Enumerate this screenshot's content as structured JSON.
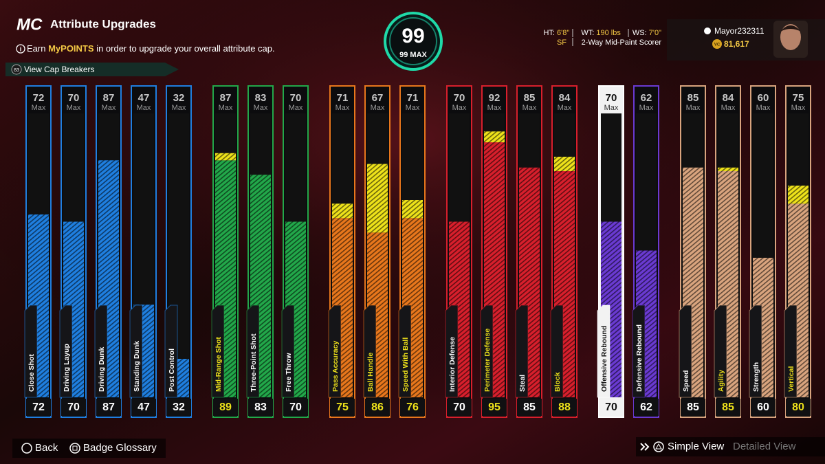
{
  "header": {
    "logo": "MC",
    "title": "Attribute Upgrades",
    "info_icon": "i",
    "info_start": "Earn",
    "info_highlight": "MyPOINTS",
    "info_end": "in order to upgrade your overall attribute cap.",
    "cap_breakers_badge": "83",
    "cap_breakers": "View Cap Breakers"
  },
  "overall": {
    "value": "99",
    "max": "99 MAX"
  },
  "player": {
    "ht_label": "HT:",
    "ht": "6'8\"",
    "wt_label": "WT:",
    "wt": "190 lbs",
    "ws_label": "WS:",
    "ws": "7'0\"",
    "position": "SF",
    "archetype": "2-Way Mid-Paint Scorer",
    "username": "Mayor232311",
    "currency_icon": "VC",
    "currency": "81,617"
  },
  "max_label": "Max",
  "groups": [
    {
      "color": "#1f7fe0",
      "attributes": [
        {
          "name": "Close Shot",
          "cap": 72,
          "current": 72
        },
        {
          "name": "Driving Layup",
          "cap": 70,
          "current": 70
        },
        {
          "name": "Driving Dunk",
          "cap": 87,
          "current": 87
        },
        {
          "name": "Standing Dunk",
          "cap": 47,
          "current": 47
        },
        {
          "name": "Post Control",
          "cap": 32,
          "current": 32
        }
      ]
    },
    {
      "color": "#22a84a",
      "attributes": [
        {
          "name": "Mid-Range Shot",
          "cap": 87,
          "current": 89
        },
        {
          "name": "Three-Point Shot",
          "cap": 83,
          "current": 83
        },
        {
          "name": "Free Throw",
          "cap": 70,
          "current": 70
        }
      ]
    },
    {
      "color": "#e8771c",
      "attributes": [
        {
          "name": "Pass Accuracy",
          "cap": 71,
          "current": 75
        },
        {
          "name": "Ball Handle",
          "cap": 67,
          "current": 86
        },
        {
          "name": "Speed With Ball",
          "cap": 71,
          "current": 76
        }
      ]
    },
    {
      "color": "#d81f2c",
      "attributes": [
        {
          "name": "Interior Defense",
          "cap": 70,
          "current": 70
        },
        {
          "name": "Perimeter Defense",
          "cap": 92,
          "current": 95
        },
        {
          "name": "Steal",
          "cap": 85,
          "current": 85
        },
        {
          "name": "Block",
          "cap": 84,
          "current": 88
        }
      ]
    },
    {
      "color": "#6a3ad2",
      "attributes": [
        {
          "name": "Offensive Rebound",
          "cap": 70,
          "current": 70,
          "selected": true
        },
        {
          "name": "Defensive Rebound",
          "cap": 62,
          "current": 62
        }
      ]
    },
    {
      "color": "#d9a47e",
      "attributes": [
        {
          "name": "Speed",
          "cap": 85,
          "current": 85
        },
        {
          "name": "Agility",
          "cap": 84,
          "current": 85
        },
        {
          "name": "Strength",
          "cap": 60,
          "current": 60
        },
        {
          "name": "Vertical",
          "cap": 75,
          "current": 80
        }
      ]
    }
  ],
  "footer": {
    "back": "Back",
    "badge_glossary": "Badge Glossary",
    "simple_view": "Simple View",
    "detailed_view": "Detailed View"
  }
}
